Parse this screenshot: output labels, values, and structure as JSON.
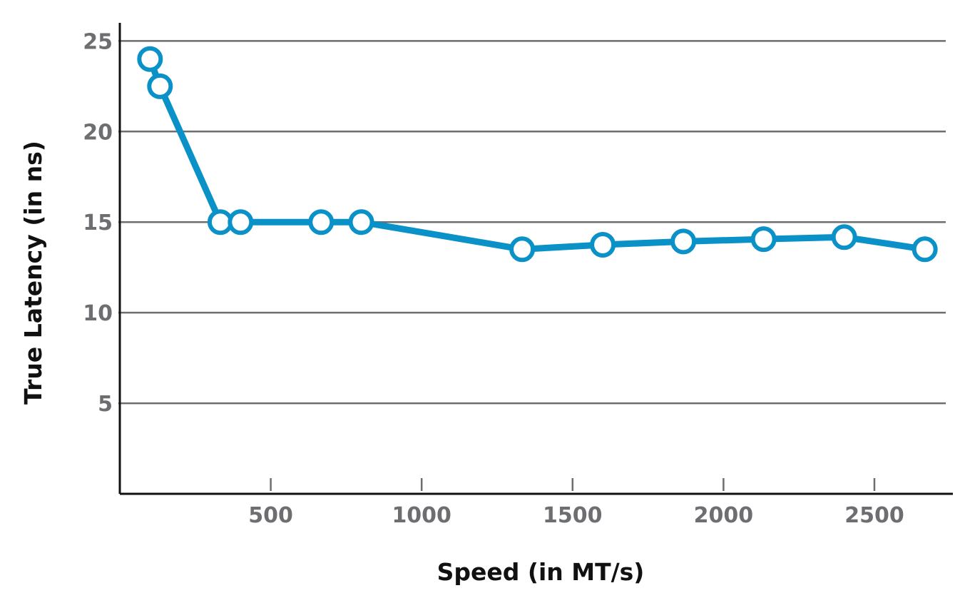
{
  "chart_data": {
    "type": "line",
    "xlabel": "Speed (in MT/s)",
    "ylabel": "True Latency (in ns)",
    "xlim": [
      0,
      2760
    ],
    "ylim": [
      0,
      26
    ],
    "x_ticks": [
      500,
      1000,
      1500,
      2000,
      2500
    ],
    "x_tick_labels": [
      "500",
      "1000",
      "1500",
      "2000",
      "2500"
    ],
    "y_ticks": [
      5,
      10,
      15,
      20,
      25
    ],
    "y_tick_labels": [
      "5",
      "10",
      "15",
      "20",
      "25"
    ],
    "grid": "horizontal",
    "legend": "none",
    "series": [
      {
        "color": "#0a91c8",
        "x": [
          100,
          133,
          333,
          400,
          667,
          800,
          1333,
          1600,
          1867,
          2133,
          2400,
          2667
        ],
        "y": [
          24.0,
          22.5,
          15.0,
          15.0,
          15.0,
          15.0,
          13.5,
          13.75,
          13.93,
          14.06,
          14.17,
          13.5
        ]
      }
    ]
  }
}
